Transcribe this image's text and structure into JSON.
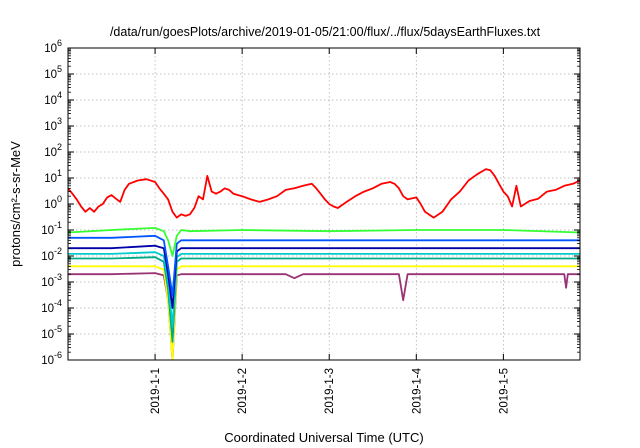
{
  "chart_data": {
    "type": "line",
    "title": "/data/run/goesPlots/archive/2019-01-05/21:00/flux/../flux/5daysEarthFluxes.txt",
    "xlabel": "Coordinated Universal Time (UTC)",
    "ylabel": "protons/cm²-s-sr-MeV",
    "yscale": "log",
    "ylim": [
      1e-06,
      1000000.0
    ],
    "xlim": [
      0,
      5.88
    ],
    "x_tick_values": [
      1,
      2,
      3,
      4,
      5
    ],
    "x_tick_labels": [
      "2019-1-1",
      "2019-1-2",
      "2019-1-3",
      "2019-1-4",
      "2019-1-5"
    ],
    "y_tick_labels": [
      {
        "exp": "-6",
        "value": 1e-06
      },
      {
        "exp": "-5",
        "value": 1e-05
      },
      {
        "exp": "-4",
        "value": 0.0001
      },
      {
        "exp": "-3",
        "value": 0.001
      },
      {
        "exp": "-2",
        "value": 0.01
      },
      {
        "exp": "-1",
        "value": 0.1
      },
      {
        "exp": "0",
        "value": 1
      },
      {
        "exp": "1",
        "value": 10
      },
      {
        "exp": "2",
        "value": 100
      },
      {
        "exp": "3",
        "value": 1000
      },
      {
        "exp": "4",
        "value": 10000
      },
      {
        "exp": "5",
        "value": 100000
      },
      {
        "exp": "6",
        "value": 1000000
      }
    ],
    "y_tick_base": "10",
    "grid": true,
    "colors": {
      "red": "#ff0000",
      "green": "#33ff33",
      "blue": "#0055ff",
      "navy": "#0000aa",
      "cyan": "#00cccc",
      "teal": "#00aa88",
      "yellow": "#ffff00",
      "purple": "#993377"
    },
    "series": [
      {
        "color": "#ff0000",
        "x": [
          0,
          0.05,
          0.1,
          0.15,
          0.2,
          0.25,
          0.3,
          0.35,
          0.4,
          0.45,
          0.5,
          0.55,
          0.6,
          0.65,
          0.7,
          0.8,
          0.9,
          1.0,
          1.05,
          1.1,
          1.15,
          1.2,
          1.25,
          1.3,
          1.35,
          1.4,
          1.45,
          1.5,
          1.55,
          1.6,
          1.65,
          1.7,
          1.75,
          1.8,
          1.85,
          1.9,
          2.0,
          2.1,
          2.2,
          2.3,
          2.4,
          2.5,
          2.6,
          2.7,
          2.8,
          2.85,
          2.9,
          2.95,
          3.0,
          3.05,
          3.1,
          3.2,
          3.3,
          3.4,
          3.5,
          3.6,
          3.7,
          3.75,
          3.8,
          3.85,
          3.9,
          4.0,
          4.05,
          4.1,
          4.2,
          4.3,
          4.4,
          4.5,
          4.6,
          4.7,
          4.8,
          4.85,
          4.9,
          4.95,
          5.0,
          5.05,
          5.1,
          5.15,
          5.2,
          5.3,
          5.4,
          5.5,
          5.6,
          5.7,
          5.8,
          5.88
        ],
        "y": [
          4,
          2.5,
          1.5,
          0.8,
          0.5,
          0.7,
          0.5,
          0.8,
          1.0,
          1.8,
          2.2,
          1.6,
          1.2,
          3.5,
          6,
          8,
          9,
          7,
          4,
          2.5,
          1.5,
          0.5,
          0.3,
          0.4,
          0.35,
          0.4,
          0.7,
          2,
          1.5,
          12,
          3,
          2.5,
          3,
          4,
          3.5,
          2.5,
          2,
          1.5,
          1.2,
          1.5,
          2,
          3.5,
          4,
          5,
          6,
          4,
          2.5,
          1.5,
          1,
          0.8,
          0.7,
          1.2,
          2,
          3,
          4,
          6,
          7,
          6,
          4,
          2,
          1.5,
          1.8,
          1,
          0.5,
          0.3,
          0.5,
          1.5,
          3,
          8,
          14,
          22,
          20,
          12,
          6,
          3,
          2,
          0.8,
          5,
          0.8,
          1.3,
          1.6,
          3,
          3.5,
          5,
          6,
          8
        ]
      },
      {
        "color": "#33ff33",
        "x": [
          0,
          0.5,
          1.0,
          1.1,
          1.15,
          1.2,
          1.25,
          1.3,
          1.4,
          2.0,
          3.0,
          4.0,
          5.0,
          5.88
        ],
        "y": [
          0.08,
          0.1,
          0.12,
          0.09,
          0.04,
          0.01,
          0.06,
          0.1,
          0.09,
          0.1,
          0.09,
          0.1,
          0.1,
          0.08
        ]
      },
      {
        "color": "#0055ff",
        "x": [
          0,
          0.5,
          1.0,
          1.1,
          1.15,
          1.2,
          1.25,
          1.3,
          1.4,
          2.0,
          3.0,
          4.0,
          5.0,
          5.88
        ],
        "y": [
          0.05,
          0.05,
          0.06,
          0.04,
          0.004,
          0.0003,
          0.03,
          0.04,
          0.04,
          0.04,
          0.04,
          0.04,
          0.04,
          0.04
        ]
      },
      {
        "color": "#0000aa",
        "x": [
          0,
          0.5,
          1.0,
          1.1,
          1.15,
          1.2,
          1.25,
          1.3,
          1.4,
          2.0,
          3.0,
          4.0,
          5.0,
          5.88
        ],
        "y": [
          0.02,
          0.02,
          0.025,
          0.02,
          0.002,
          0.0001,
          0.015,
          0.02,
          0.02,
          0.02,
          0.02,
          0.02,
          0.02,
          0.02
        ]
      },
      {
        "color": "#00cccc",
        "x": [
          0,
          0.5,
          1.0,
          1.1,
          1.15,
          1.2,
          1.25,
          1.3,
          1.4,
          2.0,
          3.0,
          4.0,
          5.0,
          5.88
        ],
        "y": [
          0.012,
          0.012,
          0.014,
          0.01,
          0.001,
          2e-05,
          0.009,
          0.012,
          0.012,
          0.012,
          0.012,
          0.012,
          0.012,
          0.012
        ]
      },
      {
        "color": "#00aa88",
        "x": [
          0,
          0.5,
          1.0,
          1.1,
          1.15,
          1.2,
          1.25,
          1.3,
          1.4,
          2.0,
          3.0,
          4.0,
          5.0,
          5.88
        ],
        "y": [
          0.008,
          0.008,
          0.009,
          0.006,
          0.0005,
          5e-06,
          0.006,
          0.008,
          0.008,
          0.008,
          0.008,
          0.008,
          0.008,
          0.008
        ]
      },
      {
        "color": "#ffff00",
        "x": [
          0,
          0.5,
          1.0,
          1.1,
          1.15,
          1.2,
          1.25,
          1.3,
          1.4,
          2.0,
          3.0,
          4.0,
          5.0,
          5.88
        ],
        "y": [
          0.004,
          0.004,
          0.004,
          0.003,
          0.0002,
          1e-06,
          0.003,
          0.004,
          0.004,
          0.004,
          0.004,
          0.004,
          0.004,
          0.004
        ]
      },
      {
        "color": "#993377",
        "x": [
          0,
          0.5,
          1.0,
          1.1,
          1.15,
          1.2,
          1.25,
          1.3,
          1.4,
          2.0,
          2.5,
          2.6,
          2.7,
          3.0,
          3.8,
          3.85,
          3.9,
          4.0,
          5.0,
          5.7,
          5.72,
          5.74,
          5.88
        ],
        "y": [
          0.002,
          0.002,
          0.0022,
          0.0018,
          0.0002,
          5e-07,
          0.0018,
          0.002,
          0.002,
          0.002,
          0.002,
          0.0014,
          0.002,
          0.002,
          0.002,
          0.0002,
          0.002,
          0.002,
          0.002,
          0.002,
          0.0006,
          0.002,
          0.002
        ]
      }
    ]
  }
}
